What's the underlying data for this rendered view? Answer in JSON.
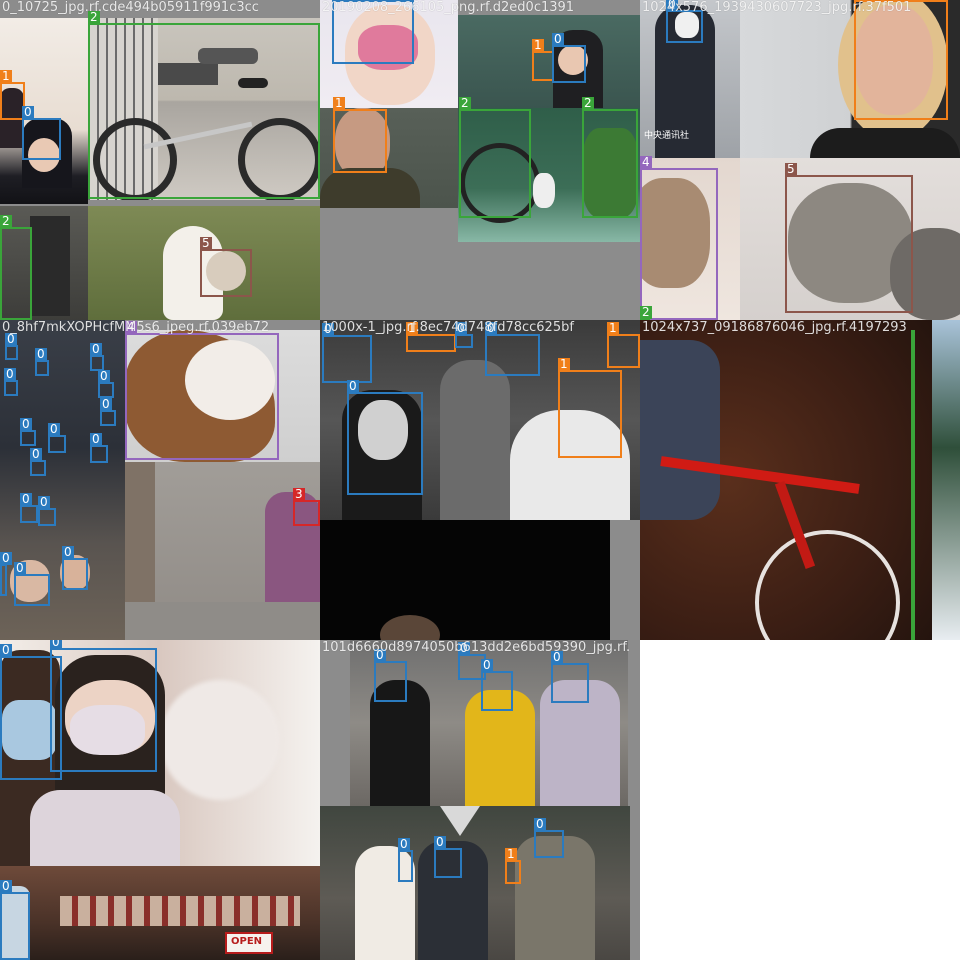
{
  "mosaic": {
    "tiles": [
      {
        "filename": "0_10725_jpg.rf.cde494b05911f991c3cc"
      },
      {
        "filename": "20190208_266105_png.rf.d2ed0c1391"
      },
      {
        "filename": "1024x576_1939430607723_jpg.rf.37f501"
      },
      {
        "filename": "0_8hf7mkXOPHcfMM5s6_jpeg.rf.039eb72"
      },
      {
        "filename": "1000x-1_jpg.rf.8ec74d748fd78cc625bf"
      },
      {
        "filename": "1024x737_09186876046_jpg.rf.4197293"
      },
      {
        "filename": ""
      },
      {
        "filename": "101d6660d8974050b613dd2e6bd59390_jpg.rf."
      }
    ],
    "class_colors": {
      "0": "#2b7bbf",
      "1": "#f07f1a",
      "2": "#3aa53a",
      "3": "#d62728",
      "4": "#9467bd",
      "5": "#8c564b"
    },
    "label_texts": [
      "0",
      "1",
      "2",
      "3",
      "4",
      "5"
    ],
    "logo_text": "中央通讯社",
    "sign_text": "OPEN"
  }
}
